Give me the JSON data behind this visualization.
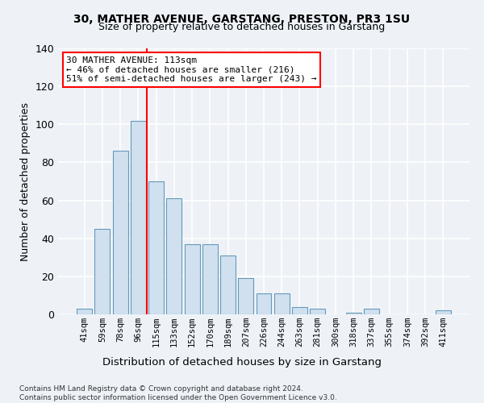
{
  "title_line1": "30, MATHER AVENUE, GARSTANG, PRESTON, PR3 1SU",
  "title_line2": "Size of property relative to detached houses in Garstang",
  "xlabel": "Distribution of detached houses by size in Garstang",
  "ylabel": "Number of detached properties",
  "bar_labels": [
    "41sqm",
    "59sqm",
    "78sqm",
    "96sqm",
    "115sqm",
    "133sqm",
    "152sqm",
    "170sqm",
    "189sqm",
    "207sqm",
    "226sqm",
    "244sqm",
    "263sqm",
    "281sqm",
    "300sqm",
    "318sqm",
    "337sqm",
    "355sqm",
    "374sqm",
    "392sqm",
    "411sqm"
  ],
  "bar_values": [
    3,
    45,
    86,
    102,
    70,
    61,
    37,
    37,
    31,
    19,
    11,
    11,
    4,
    3,
    0,
    1,
    3,
    0,
    0,
    0,
    2
  ],
  "bar_color": "#d0e0ee",
  "bar_edgecolor": "#6699bb",
  "ylim": [
    0,
    140
  ],
  "yticks": [
    0,
    20,
    40,
    60,
    80,
    100,
    120,
    140
  ],
  "vline_x_idx": 3.5,
  "vline_color": "red",
  "annotation_text": "30 MATHER AVENUE: 113sqm\n← 46% of detached houses are smaller (216)\n51% of semi-detached houses are larger (243) →",
  "annotation_box_color": "white",
  "annotation_box_edgecolor": "red",
  "footnote": "Contains HM Land Registry data © Crown copyright and database right 2024.\nContains public sector information licensed under the Open Government Licence v3.0.",
  "background_color": "#eef2f7",
  "grid_color": "#ffffff"
}
